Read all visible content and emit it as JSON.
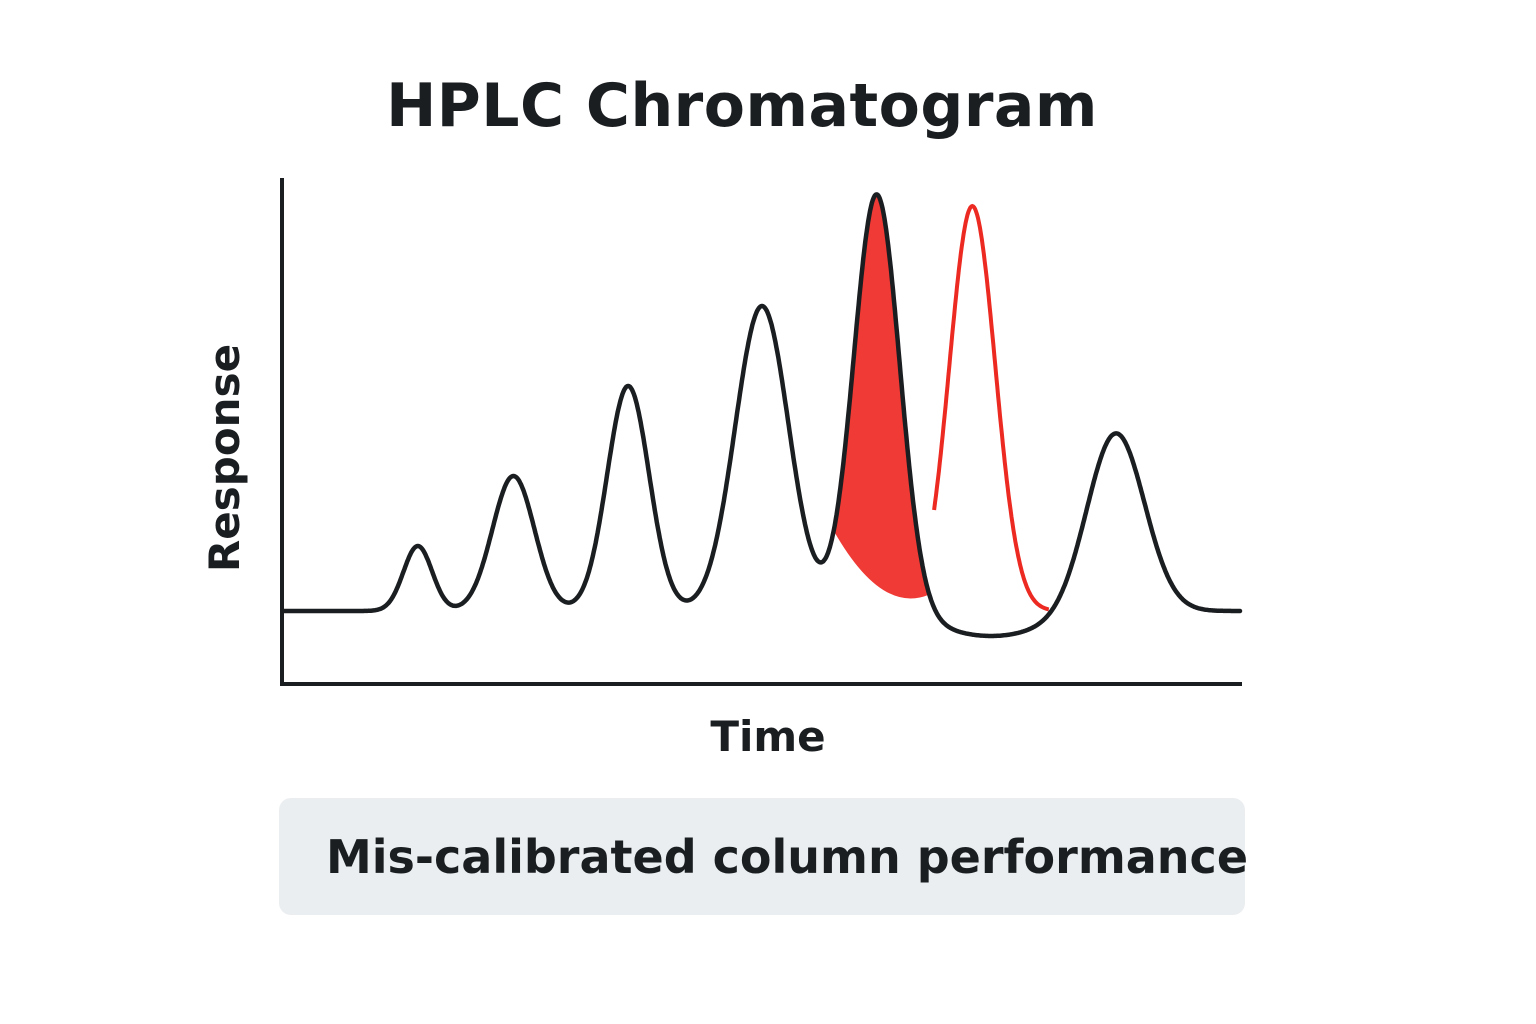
{
  "chart_data": {
    "type": "line",
    "title": "HPLC Chromatogram",
    "xlabel": "Time",
    "ylabel": "Response",
    "grid": false,
    "ticks": false,
    "xlim": [
      0,
      100
    ],
    "ylim": [
      -8,
      52
    ],
    "series": [
      {
        "color": "#1b1e21",
        "baseline": 0,
        "peaks": [
          {
            "x": 14,
            "height": 6.5,
            "width": 1.5
          },
          {
            "x": 24,
            "height": 13.5,
            "width": 2.2
          },
          {
            "x": 36,
            "height": 22.5,
            "width": 2.2
          },
          {
            "x": 50,
            "height": 30.5,
            "width": 2.8
          },
          {
            "x": 62,
            "height": 42,
            "width": 2.4
          },
          {
            "x": 87,
            "height": 18,
            "width": 3.0
          }
        ],
        "dip": {
          "x": 74,
          "depth": -2.5,
          "width": 6
        }
      },
      {
        "color": "#ec2a22",
        "baseline": 0,
        "peaks": [
          {
            "x": 72,
            "height": 40.5,
            "width": 2.4
          }
        ],
        "range": [
          68,
          80
        ]
      }
    ],
    "highlight": {
      "color": "#f03a35",
      "range": [
        57.5,
        67.5
      ]
    }
  },
  "caption": "Mis-calibrated column performance"
}
